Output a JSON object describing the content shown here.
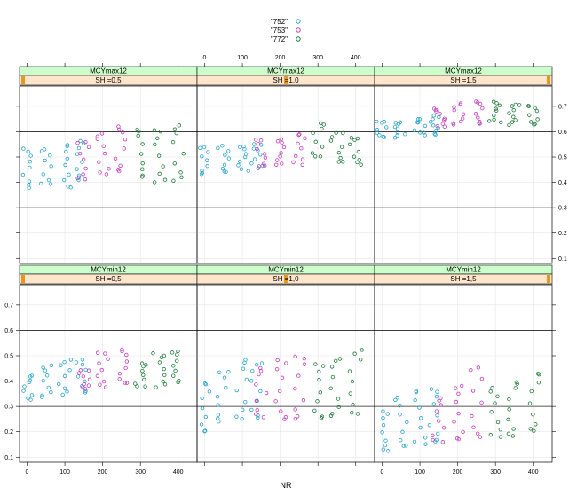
{
  "chart_data": {
    "type": "scatter",
    "xlabel": "NR",
    "x_ticks": [
      0,
      100,
      200,
      300,
      400
    ],
    "y_ticks": [
      0.1,
      0.2,
      0.3,
      0.4,
      0.5,
      0.6,
      0.7
    ],
    "xlim": [
      -20,
      450
    ],
    "ylim": [
      0.08,
      0.78
    ],
    "reference_lines": [
      0.3,
      0.6
    ],
    "grid": true,
    "legend": {
      "placement": "top-center",
      "entries": [
        {
          "label": "\"752\"",
          "color": "#29a3c8"
        },
        {
          "label": "\"753\"",
          "color": "#c23dbf"
        },
        {
          "label": "\"772\"",
          "color": "#1f7a3a"
        }
      ]
    },
    "strip_colors": {
      "outer": "#ccffcc",
      "inner": "#ffe5cc",
      "sh_marker": "#e8961e"
    },
    "panels": [
      {
        "row": 0,
        "col": 0,
        "variable": "MCYmax12",
        "sh_label": "SH =0,5",
        "sh_position": 0,
        "series": [
          {
            "name": "\"752\"",
            "x": [
              0,
              50,
              100,
              140
            ],
            "y_min": [
              0.38,
              0.39,
              0.38,
              0.41
            ],
            "y_max": [
              0.53,
              0.53,
              0.55,
              0.56
            ]
          },
          {
            "name": "\"753\"",
            "x": [
              150,
              200,
              250
            ],
            "y_min": [
              0.41,
              0.43,
              0.44
            ],
            "y_max": [
              0.56,
              0.59,
              0.62
            ]
          },
          {
            "name": "\"772\"",
            "x": [
              300,
              350,
              400
            ],
            "y_min": [
              0.42,
              0.4,
              0.41
            ],
            "y_max": [
              0.61,
              0.61,
              0.62
            ]
          }
        ]
      },
      {
        "row": 0,
        "col": 1,
        "variable": "MCYmax12",
        "sh_label": "SH =1,0",
        "sh_position": 0.5,
        "series": [
          {
            "name": "\"752\"",
            "x": [
              0,
              50,
              100,
              140
            ],
            "y_min": [
              0.43,
              0.44,
              0.45,
              0.46
            ],
            "y_max": [
              0.54,
              0.54,
              0.54,
              0.55
            ]
          },
          {
            "name": "\"753\"",
            "x": [
              150,
              200,
              250
            ],
            "y_min": [
              0.46,
              0.47,
              0.47
            ],
            "y_max": [
              0.57,
              0.57,
              0.59
            ]
          },
          {
            "name": "\"772\"",
            "x": [
              300,
              350,
              400
            ],
            "y_min": [
              0.5,
              0.48,
              0.47
            ],
            "y_max": [
              0.63,
              0.6,
              0.58
            ]
          }
        ]
      },
      {
        "row": 0,
        "col": 2,
        "variable": "MCYmax12",
        "sh_label": "SH =1,5",
        "sh_position": 1,
        "series": [
          {
            "name": "\"752\"",
            "x": [
              0,
              50,
              100,
              140
            ],
            "y_min": [
              0.58,
              0.58,
              0.59,
              0.59
            ],
            "y_max": [
              0.64,
              0.64,
              0.65,
              0.66
            ]
          },
          {
            "name": "\"753\"",
            "x": [
              150,
              200,
              250
            ],
            "y_min": [
              0.62,
              0.63,
              0.63
            ],
            "y_max": [
              0.69,
              0.71,
              0.72
            ]
          },
          {
            "name": "\"772\"",
            "x": [
              300,
              350,
              400
            ],
            "y_min": [
              0.64,
              0.63,
              0.63
            ],
            "y_max": [
              0.72,
              0.71,
              0.7
            ]
          }
        ]
      },
      {
        "row": 1,
        "col": 0,
        "variable": "MCYmin12",
        "sh_label": "SH =0,5",
        "sh_position": 0,
        "series": [
          {
            "name": "\"752\"",
            "x": [
              0,
              50,
              100,
              140
            ],
            "y_min": [
              0.33,
              0.34,
              0.35,
              0.36
            ],
            "y_max": [
              0.42,
              0.46,
              0.48,
              0.48
            ]
          },
          {
            "name": "\"753\"",
            "x": [
              150,
              200,
              250
            ],
            "y_min": [
              0.37,
              0.38,
              0.39
            ],
            "y_max": [
              0.44,
              0.51,
              0.52
            ]
          },
          {
            "name": "\"772\"",
            "x": [
              300,
              350,
              400
            ],
            "y_min": [
              0.38,
              0.38,
              0.4
            ],
            "y_max": [
              0.47,
              0.51,
              0.52
            ]
          }
        ]
      },
      {
        "row": 1,
        "col": 1,
        "variable": "MCYmin12",
        "sh_label": "SH =1,0",
        "sh_position": 0.5,
        "series": [
          {
            "name": "\"752\"",
            "x": [
              0,
              50,
              100,
              140
            ],
            "y_min": [
              0.2,
              0.24,
              0.25,
              0.26
            ],
            "y_max": [
              0.39,
              0.44,
              0.48,
              0.47
            ]
          },
          {
            "name": "\"753\"",
            "x": [
              150,
              200,
              250
            ],
            "y_min": [
              0.26,
              0.25,
              0.25
            ],
            "y_max": [
              0.45,
              0.48,
              0.5
            ]
          },
          {
            "name": "\"772\"",
            "x": [
              300,
              350,
              400
            ],
            "y_min": [
              0.25,
              0.26,
              0.27
            ],
            "y_max": [
              0.47,
              0.49,
              0.52
            ]
          }
        ]
      },
      {
        "row": 1,
        "col": 2,
        "variable": "MCYmin12",
        "sh_label": "SH =1,5",
        "sh_position": 1,
        "series": [
          {
            "name": "\"752\"",
            "x": [
              0,
              50,
              100,
              140
            ],
            "y_min": [
              0.12,
              0.14,
              0.15,
              0.16
            ],
            "y_max": [
              0.28,
              0.33,
              0.36,
              0.37
            ]
          },
          {
            "name": "\"753\"",
            "x": [
              150,
              200,
              250
            ],
            "y_min": [
              0.16,
              0.17,
              0.18
            ],
            "y_max": [
              0.33,
              0.38,
              0.45
            ]
          },
          {
            "name": "\"772\"",
            "x": [
              300,
              350,
              400
            ],
            "y_min": [
              0.18,
              0.18,
              0.2
            ],
            "y_max": [
              0.37,
              0.4,
              0.43
            ]
          }
        ]
      }
    ]
  }
}
